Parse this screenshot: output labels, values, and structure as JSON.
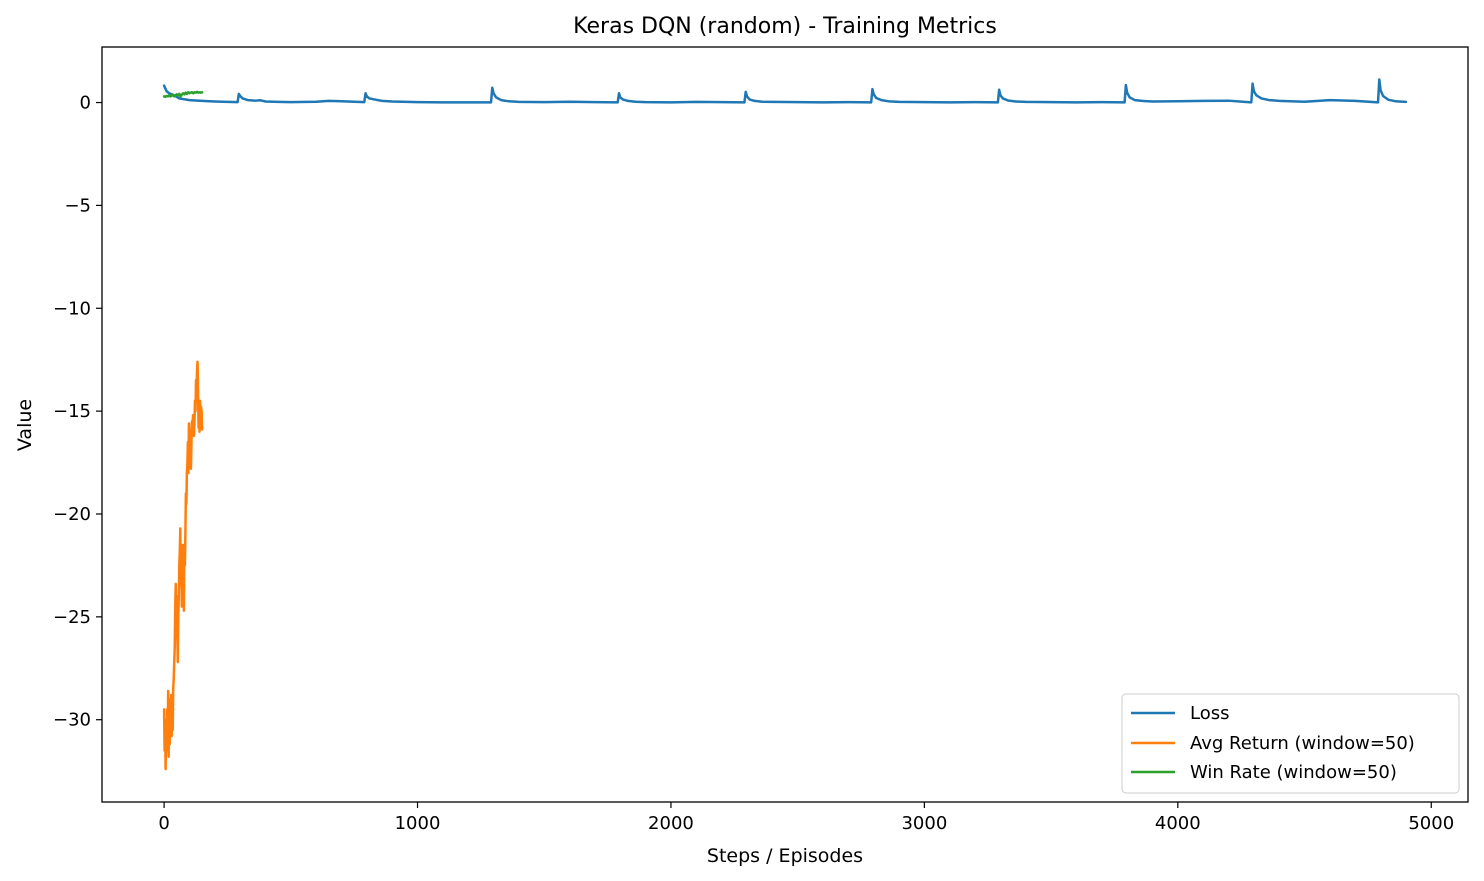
{
  "chart_data": {
    "type": "line",
    "title": "Keras DQN (random) - Training Metrics",
    "xlabel": "Steps / Episodes",
    "ylabel": "Value",
    "xlim": [
      -245,
      5145
    ],
    "ylim": [
      -34.0,
      2.7
    ],
    "xticks": [
      0,
      1000,
      2000,
      3000,
      4000,
      5000
    ],
    "xtick_labels": [
      "0",
      "1000",
      "2000",
      "3000",
      "4000",
      "5000"
    ],
    "yticks": [
      0,
      -5,
      -10,
      -15,
      -20,
      -25,
      -30
    ],
    "ytick_labels": [
      "0",
      "−5",
      "−10",
      "−15",
      "−20",
      "−25",
      "−30"
    ],
    "grid": false,
    "legend_position": "lower right",
    "series": [
      {
        "name": "Loss",
        "color": "#1f77b4",
        "x": [
          0,
          10,
          20,
          40,
          60,
          100,
          150,
          200,
          250,
          290,
          295,
          300,
          310,
          330,
          360,
          380,
          400,
          450,
          500,
          600,
          650,
          700,
          750,
          790,
          795,
          800,
          810,
          830,
          860,
          900,
          1000,
          1100,
          1200,
          1250,
          1290,
          1295,
          1300,
          1310,
          1330,
          1360,
          1400,
          1500,
          1600,
          1700,
          1790,
          1795,
          1800,
          1810,
          1830,
          1860,
          1900,
          2000,
          2100,
          2200,
          2290,
          2295,
          2300,
          2310,
          2330,
          2360,
          2400,
          2500,
          2600,
          2700,
          2790,
          2795,
          2800,
          2810,
          2830,
          2860,
          2900,
          3000,
          3100,
          3200,
          3290,
          3295,
          3300,
          3310,
          3330,
          3360,
          3400,
          3500,
          3600,
          3700,
          3790,
          3795,
          3800,
          3810,
          3830,
          3860,
          3900,
          4000,
          4100,
          4200,
          4290,
          4295,
          4300,
          4310,
          4330,
          4360,
          4400,
          4500,
          4600,
          4700,
          4790,
          4795,
          4800,
          4810,
          4830,
          4860,
          4900
        ],
        "y": [
          0.82,
          0.55,
          0.45,
          0.35,
          0.2,
          0.12,
          0.08,
          0.05,
          0.03,
          0.02,
          0.42,
          0.32,
          0.2,
          0.12,
          0.09,
          0.11,
          0.05,
          0.03,
          0.02,
          0.04,
          0.08,
          0.06,
          0.04,
          0.02,
          0.45,
          0.3,
          0.2,
          0.15,
          0.08,
          0.05,
          0.02,
          0.01,
          0.01,
          0.01,
          0.01,
          0.72,
          0.45,
          0.25,
          0.12,
          0.06,
          0.03,
          0.02,
          0.04,
          0.02,
          0.01,
          0.45,
          0.25,
          0.15,
          0.08,
          0.04,
          0.02,
          0.01,
          0.03,
          0.02,
          0.01,
          0.52,
          0.3,
          0.15,
          0.08,
          0.04,
          0.03,
          0.02,
          0.01,
          0.02,
          0.01,
          0.65,
          0.4,
          0.22,
          0.12,
          0.06,
          0.03,
          0.02,
          0.01,
          0.02,
          0.01,
          0.62,
          0.35,
          0.2,
          0.1,
          0.05,
          0.03,
          0.02,
          0.01,
          0.02,
          0.01,
          0.85,
          0.48,
          0.25,
          0.12,
          0.08,
          0.05,
          0.06,
          0.08,
          0.09,
          0.01,
          0.92,
          0.55,
          0.35,
          0.2,
          0.12,
          0.08,
          0.04,
          0.12,
          0.08,
          0.01,
          1.12,
          0.6,
          0.32,
          0.14,
          0.06,
          0.03
        ]
      },
      {
        "name": "Avg Return (window=50)",
        "color": "#ff7f0e",
        "x": [
          0,
          2,
          4,
          6,
          8,
          10,
          12,
          14,
          16,
          18,
          20,
          22,
          24,
          26,
          28,
          30,
          32,
          34,
          36,
          38,
          40,
          42,
          44,
          46,
          48,
          50,
          52,
          54,
          56,
          58,
          60,
          62,
          64,
          66,
          68,
          70,
          72,
          74,
          76,
          78,
          80,
          82,
          84,
          86,
          88,
          90,
          92,
          94,
          96,
          98,
          100,
          102,
          104,
          106,
          108,
          110,
          112,
          114,
          116,
          118,
          120,
          122,
          124,
          126,
          128,
          130,
          132,
          134,
          136,
          138,
          140,
          142,
          144,
          146,
          148,
          150
        ],
        "y": [
          -29.5,
          -31.5,
          -30.0,
          -32.4,
          -30.5,
          -31.0,
          -29.5,
          -31.5,
          -28.6,
          -31.8,
          -29.0,
          -31.2,
          -29.5,
          -30.0,
          -28.8,
          -30.8,
          -29.2,
          -30.5,
          -28.5,
          -28.0,
          -27.2,
          -26.5,
          -24.5,
          -23.4,
          -26.0,
          -24.0,
          -25.5,
          -27.2,
          -25.0,
          -24.0,
          -22.5,
          -21.8,
          -20.7,
          -23.5,
          -22.0,
          -24.5,
          -21.5,
          -23.0,
          -22.0,
          -24.7,
          -21.5,
          -22.5,
          -21.0,
          -19.0,
          -19.5,
          -18.0,
          -17.5,
          -16.5,
          -18.0,
          -15.6,
          -16.2,
          -17.0,
          -16.0,
          -17.8,
          -16.5,
          -15.5,
          -16.0,
          -15.2,
          -15.5,
          -16.2,
          -15.5,
          -14.5,
          -15.0,
          -13.5,
          -14.0,
          -13.0,
          -12.6,
          -14.0,
          -15.8,
          -15.4,
          -16.0,
          -14.5,
          -15.2,
          -14.8,
          -15.0,
          -15.9
        ]
      },
      {
        "name": "Win Rate (window=50)",
        "color": "#2ca02c",
        "x": [
          0,
          5,
          10,
          15,
          20,
          25,
          30,
          35,
          40,
          45,
          50,
          55,
          60,
          65,
          70,
          75,
          80,
          85,
          90,
          95,
          100,
          105,
          110,
          115,
          120,
          125,
          130,
          135,
          140,
          145,
          150
        ],
        "y": [
          0.3,
          0.28,
          0.32,
          0.3,
          0.35,
          0.3,
          0.33,
          0.38,
          0.3,
          0.35,
          0.4,
          0.35,
          0.42,
          0.3,
          0.38,
          0.45,
          0.4,
          0.48,
          0.42,
          0.5,
          0.45,
          0.48,
          0.5,
          0.45,
          0.5,
          0.48,
          0.52,
          0.48,
          0.5,
          0.48,
          0.5
        ]
      }
    ]
  }
}
